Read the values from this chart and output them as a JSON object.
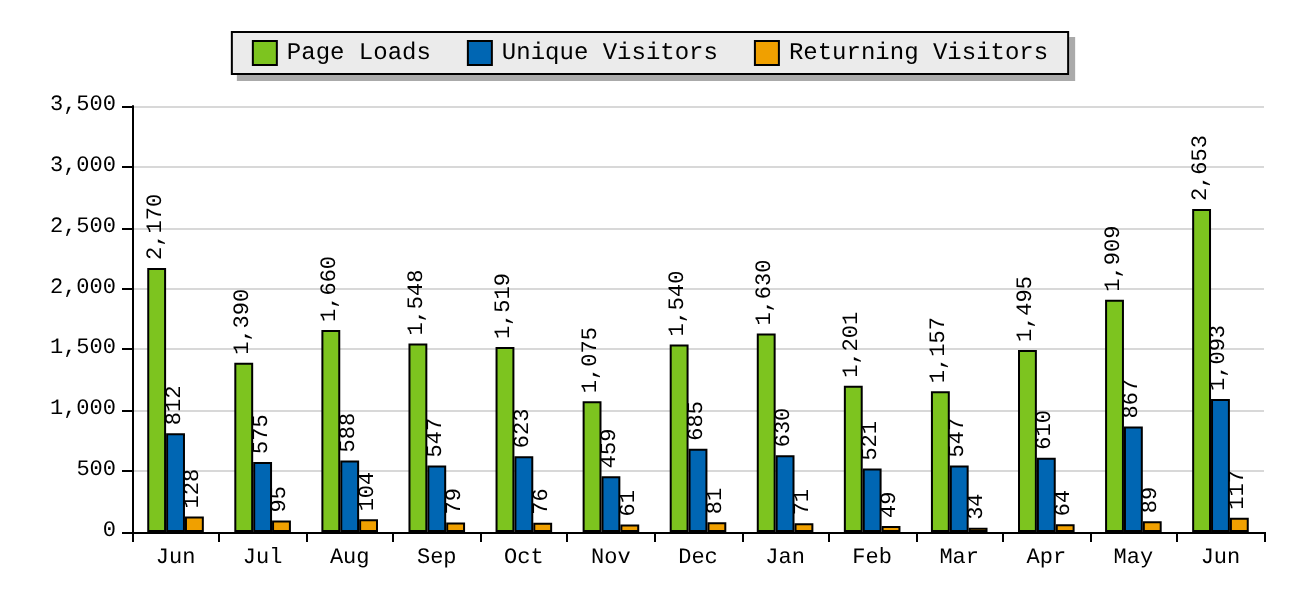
{
  "chart_data": {
    "type": "bar",
    "categories": [
      "Jun",
      "Jul",
      "Aug",
      "Sep",
      "Oct",
      "Nov",
      "Dec",
      "Jan",
      "Feb",
      "Mar",
      "Apr",
      "May",
      "Jun"
    ],
    "series": [
      {
        "name": "Page Loads",
        "color": "#7dc41f",
        "values": [
          2170,
          1390,
          1660,
          1548,
          1519,
          1075,
          1540,
          1630,
          1201,
          1157,
          1495,
          1909,
          2653
        ],
        "value_labels": [
          "2,170",
          "1,390",
          "1,660",
          "1,548",
          "1,519",
          "1,075",
          "1,540",
          "1,630",
          "1,201",
          "1,157",
          "1,495",
          "1,909",
          "2,653"
        ]
      },
      {
        "name": "Unique Visitors",
        "color": "#0066b3",
        "values": [
          812,
          575,
          588,
          547,
          623,
          459,
          685,
          630,
          521,
          547,
          610,
          867,
          1093
        ],
        "value_labels": [
          "812",
          "575",
          "588",
          "547",
          "623",
          "459",
          "685",
          "630",
          "521",
          "547",
          "610",
          "867",
          "1,093"
        ]
      },
      {
        "name": "Returning Visitors",
        "color": "#f0a000",
        "values": [
          128,
          95,
          104,
          79,
          76,
          61,
          81,
          71,
          49,
          34,
          64,
          89,
          117
        ],
        "value_labels": [
          "128",
          "95",
          "104",
          "79",
          "76",
          "61",
          "81",
          "71",
          "49",
          "34",
          "64",
          "89",
          "117"
        ]
      }
    ],
    "ylim": [
      0,
      3500
    ],
    "yticks": [
      0,
      {
        "value": 500,
        "label": "500"
      },
      {
        "value": 1000,
        "label": "1,000"
      },
      {
        "value": 1500,
        "label": "1,500"
      },
      {
        "value": 2000,
        "label": "2,000"
      },
      {
        "value": 2500,
        "label": "2,500"
      },
      {
        "value": 3000,
        "label": "3,000"
      },
      {
        "value": 3500,
        "label": "3,500"
      }
    ],
    "grid": "y",
    "legend": "top"
  }
}
